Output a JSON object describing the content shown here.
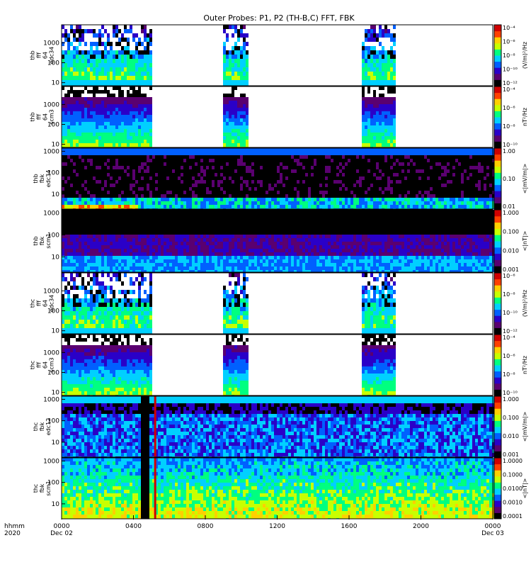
{
  "title": "Outer Probes: P1, P2 (TH-B,C) FFT, FBK",
  "x_axis": {
    "row_label_1": "hhmm",
    "row_label_2": "2020",
    "ticks": [
      {
        "label": "0000",
        "sub": "Dec 02",
        "hour": 0
      },
      {
        "label": "0400",
        "sub": "",
        "hour": 4
      },
      {
        "label": "0800",
        "sub": "",
        "hour": 8
      },
      {
        "label": "1200",
        "sub": "",
        "hour": 12
      },
      {
        "label": "1600",
        "sub": "",
        "hour": 16
      },
      {
        "label": "2000",
        "sub": "",
        "hour": 20
      },
      {
        "label": "0000",
        "sub": "Dec 03",
        "hour": 24
      }
    ],
    "range_hours": [
      0,
      24
    ]
  },
  "colors": {
    "colormap": [
      "#000000",
      "#5a0070",
      "#2a00c8",
      "#0060ff",
      "#00d0ff",
      "#00ff80",
      "#c8ff00",
      "#ffd000",
      "#ff4000",
      "#d00000"
    ],
    "background": "#ffffff"
  },
  "chart_data": [
    {
      "type": "heatmap",
      "label_lines": [
        "thb",
        "fff",
        "64",
        "edc34"
      ],
      "y_ticks": [
        "10",
        "100",
        "1000"
      ],
      "y_range": [
        7,
        8000
      ],
      "y_scale": "log",
      "cb_ticks": [
        "10⁻¹²",
        "10⁻¹⁰",
        "10⁻⁸",
        "10⁻⁶",
        "10⁻⁴"
      ],
      "cb_label": "(V/m)²/Hz",
      "coverage_hours": [
        [
          0.0,
          5.0
        ],
        [
          8.9,
          10.4
        ],
        [
          16.6,
          18.6
        ]
      ],
      "style": "sparse"
    },
    {
      "type": "heatmap",
      "label_lines": [
        "thb",
        "fff",
        "64",
        "scm3"
      ],
      "y_ticks": [
        "10",
        "100",
        "1000"
      ],
      "y_range": [
        7,
        8000
      ],
      "y_scale": "log",
      "cb_ticks": [
        "10⁻¹⁰",
        "10⁻⁸",
        "10⁻⁶",
        "10⁻⁴"
      ],
      "cb_label": "nT²/Hz",
      "coverage_hours": [
        [
          0.0,
          5.0
        ],
        [
          8.9,
          10.4
        ],
        [
          16.6,
          18.6
        ]
      ],
      "style": "bands"
    },
    {
      "type": "heatmap",
      "label_lines": [
        "thb",
        "fbk",
        "edc34"
      ],
      "y_ticks": [
        "10",
        "100",
        "1000"
      ],
      "y_range": [
        2,
        1400
      ],
      "y_scale": "log",
      "cb_ticks": [
        "0.01",
        "0.10",
        "1.00"
      ],
      "cb_label": "<|mV/m|>",
      "coverage_hours": [
        [
          0.0,
          24.0
        ]
      ],
      "style": "fbk_dark"
    },
    {
      "type": "heatmap",
      "label_lines": [
        "thb",
        "fbk",
        "scm1"
      ],
      "y_ticks": [
        "10",
        "100",
        "1000"
      ],
      "y_range": [
        2,
        1400
      ],
      "y_scale": "log",
      "cb_ticks": [
        "0.001",
        "0.010",
        "0.100",
        "1.000"
      ],
      "cb_label": "<|nT|>",
      "coverage_hours": [
        [
          0.0,
          24.0
        ]
      ],
      "style": "fbk_purple"
    },
    {
      "type": "heatmap",
      "label_lines": [
        "thc",
        "fff",
        "64",
        "edc34"
      ],
      "y_ticks": [
        "10",
        "100",
        "1000"
      ],
      "y_range": [
        7,
        8000
      ],
      "y_scale": "log",
      "cb_ticks": [
        "10⁻¹²",
        "10⁻¹⁰",
        "10⁻⁸",
        "10⁻⁶"
      ],
      "cb_label": "(V/m)²/Hz",
      "coverage_hours": [
        [
          0.0,
          5.0
        ],
        [
          8.9,
          10.4
        ],
        [
          16.6,
          18.6
        ]
      ],
      "style": "sparse"
    },
    {
      "type": "heatmap",
      "label_lines": [
        "thc",
        "fff",
        "64",
        "scm3"
      ],
      "y_ticks": [
        "10",
        "100",
        "1000"
      ],
      "y_range": [
        7,
        8000
      ],
      "y_scale": "log",
      "cb_ticks": [
        "10⁻¹⁰",
        "10⁻⁸",
        "10⁻⁶",
        "10⁻⁴"
      ],
      "cb_label": "nT²/Hz",
      "coverage_hours": [
        [
          0.0,
          5.0
        ],
        [
          8.9,
          10.4
        ],
        [
          16.6,
          18.6
        ]
      ],
      "style": "bands"
    },
    {
      "type": "heatmap",
      "label_lines": [
        "thc",
        "fbk",
        "edc12"
      ],
      "y_ticks": [
        "10",
        "100",
        "1000"
      ],
      "y_range": [
        2,
        1400
      ],
      "y_scale": "log",
      "cb_ticks": [
        "0.001",
        "0.010",
        "0.100",
        "1.000"
      ],
      "cb_label": "<|mV/m|>",
      "coverage_hours": [
        [
          0.0,
          24.0
        ]
      ],
      "gap_hours": [
        [
          4.4,
          4.85
        ]
      ],
      "spike_hours": [
        5.15
      ],
      "style": "fbk_cyan"
    },
    {
      "type": "heatmap",
      "label_lines": [
        "thc",
        "fbk",
        "scm1"
      ],
      "y_ticks": [
        "10",
        "100",
        "1000"
      ],
      "y_range": [
        2,
        1400
      ],
      "y_scale": "log",
      "cb_ticks": [
        "0.0001",
        "0.0010",
        "0.0100",
        "0.1000",
        "1.0000"
      ],
      "cb_label": "<|nT|>",
      "coverage_hours": [
        [
          0.0,
          24.0
        ]
      ],
      "gap_hours": [
        [
          4.4,
          4.85
        ]
      ],
      "spike_hours": [
        5.15
      ],
      "style": "fbk_green"
    }
  ]
}
